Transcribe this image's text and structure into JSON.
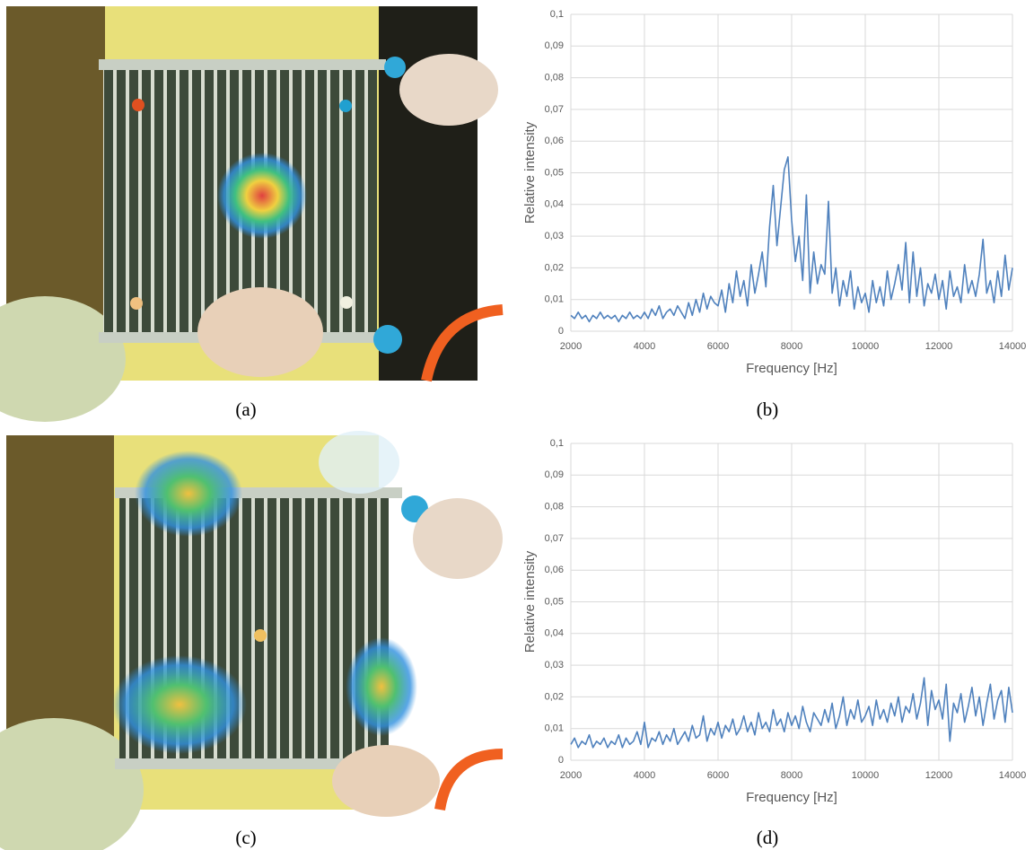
{
  "captions": [
    "(a)",
    "(b)",
    "(c)",
    "(d)"
  ],
  "chart_data": [
    {
      "type": "line",
      "xlabel": "Frequency [Hz]",
      "ylabel": "Relative intensity",
      "grid": true,
      "xlim": [
        2000,
        14000
      ],
      "ylim": [
        0,
        0.1
      ],
      "xticks": [
        2000,
        4000,
        6000,
        8000,
        10000,
        12000,
        14000
      ],
      "yticks": [
        0,
        {
          "value": 0.01,
          "label": "0,01"
        },
        {
          "value": 0.02,
          "label": "0,02"
        },
        {
          "value": 0.03,
          "label": "0,03"
        },
        {
          "value": 0.04,
          "label": "0,04"
        },
        {
          "value": 0.05,
          "label": "0,05"
        },
        {
          "value": 0.06,
          "label": "0,06"
        },
        {
          "value": 0.07,
          "label": "0,07"
        },
        {
          "value": 0.08,
          "label": "0,08"
        },
        {
          "value": 0.09,
          "label": "0,09"
        },
        {
          "value": 0.1,
          "label": "0,1"
        }
      ],
      "color": "#4f81bd",
      "x": [
        2000,
        2100,
        2200,
        2300,
        2400,
        2500,
        2600,
        2700,
        2800,
        2900,
        3000,
        3100,
        3200,
        3300,
        3400,
        3500,
        3600,
        3700,
        3800,
        3900,
        4000,
        4100,
        4200,
        4300,
        4400,
        4500,
        4600,
        4700,
        4800,
        4900,
        5000,
        5100,
        5200,
        5300,
        5400,
        5500,
        5600,
        5700,
        5800,
        5900,
        6000,
        6100,
        6200,
        6300,
        6400,
        6500,
        6600,
        6700,
        6800,
        6900,
        7000,
        7100,
        7200,
        7300,
        7400,
        7500,
        7600,
        7700,
        7800,
        7900,
        8000,
        8100,
        8200,
        8300,
        8400,
        8500,
        8600,
        8700,
        8800,
        8900,
        9000,
        9100,
        9200,
        9300,
        9400,
        9500,
        9600,
        9700,
        9800,
        9900,
        10000,
        10100,
        10200,
        10300,
        10400,
        10500,
        10600,
        10700,
        10800,
        10900,
        11000,
        11100,
        11200,
        11300,
        11400,
        11500,
        11600,
        11700,
        11800,
        11900,
        12000,
        12100,
        12200,
        12300,
        12400,
        12500,
        12600,
        12700,
        12800,
        12900,
        13000,
        13100,
        13200,
        13300,
        13400,
        13500,
        13600,
        13700,
        13800,
        13900,
        14000
      ],
      "values": [
        0.005,
        0.004,
        0.006,
        0.004,
        0.005,
        0.003,
        0.005,
        0.004,
        0.006,
        0.004,
        0.005,
        0.004,
        0.005,
        0.003,
        0.005,
        0.004,
        0.006,
        0.004,
        0.005,
        0.004,
        0.006,
        0.004,
        0.007,
        0.005,
        0.008,
        0.004,
        0.006,
        0.007,
        0.005,
        0.008,
        0.006,
        0.004,
        0.009,
        0.005,
        0.01,
        0.006,
        0.012,
        0.007,
        0.011,
        0.009,
        0.008,
        0.013,
        0.006,
        0.015,
        0.009,
        0.019,
        0.011,
        0.016,
        0.008,
        0.021,
        0.012,
        0.018,
        0.025,
        0.014,
        0.033,
        0.046,
        0.027,
        0.039,
        0.051,
        0.055,
        0.035,
        0.022,
        0.03,
        0.016,
        0.043,
        0.012,
        0.025,
        0.015,
        0.021,
        0.018,
        0.041,
        0.012,
        0.02,
        0.008,
        0.016,
        0.011,
        0.019,
        0.007,
        0.014,
        0.009,
        0.012,
        0.006,
        0.016,
        0.009,
        0.014,
        0.008,
        0.019,
        0.01,
        0.015,
        0.021,
        0.013,
        0.028,
        0.009,
        0.025,
        0.011,
        0.02,
        0.008,
        0.015,
        0.012,
        0.018,
        0.01,
        0.016,
        0.007,
        0.019,
        0.011,
        0.014,
        0.009,
        0.021,
        0.012,
        0.016,
        0.011,
        0.018,
        0.029,
        0.012,
        0.016,
        0.009,
        0.019,
        0.011,
        0.024,
        0.013,
        0.02
      ]
    },
    {
      "type": "line",
      "xlabel": "Frequency [Hz]",
      "ylabel": "Relative intensity",
      "grid": true,
      "xlim": [
        2000,
        14000
      ],
      "ylim": [
        0,
        0.1
      ],
      "xticks": [
        2000,
        4000,
        6000,
        8000,
        10000,
        12000,
        14000
      ],
      "yticks": [
        0,
        {
          "value": 0.01,
          "label": "0,01"
        },
        {
          "value": 0.02,
          "label": "0,02"
        },
        {
          "value": 0.03,
          "label": "0,03"
        },
        {
          "value": 0.04,
          "label": "0,04"
        },
        {
          "value": 0.05,
          "label": "0,05"
        },
        {
          "value": 0.06,
          "label": "0,06"
        },
        {
          "value": 0.07,
          "label": "0,07"
        },
        {
          "value": 0.08,
          "label": "0,08"
        },
        {
          "value": 0.09,
          "label": "0,09"
        },
        {
          "value": 0.1,
          "label": "0,1"
        }
      ],
      "color": "#4f81bd",
      "x": [
        2000,
        2100,
        2200,
        2300,
        2400,
        2500,
        2600,
        2700,
        2800,
        2900,
        3000,
        3100,
        3200,
        3300,
        3400,
        3500,
        3600,
        3700,
        3800,
        3900,
        4000,
        4100,
        4200,
        4300,
        4400,
        4500,
        4600,
        4700,
        4800,
        4900,
        5000,
        5100,
        5200,
        5300,
        5400,
        5500,
        5600,
        5700,
        5800,
        5900,
        6000,
        6100,
        6200,
        6300,
        6400,
        6500,
        6600,
        6700,
        6800,
        6900,
        7000,
        7100,
        7200,
        7300,
        7400,
        7500,
        7600,
        7700,
        7800,
        7900,
        8000,
        8100,
        8200,
        8300,
        8400,
        8500,
        8600,
        8700,
        8800,
        8900,
        9000,
        9100,
        9200,
        9300,
        9400,
        9500,
        9600,
        9700,
        9800,
        9900,
        10000,
        10100,
        10200,
        10300,
        10400,
        10500,
        10600,
        10700,
        10800,
        10900,
        11000,
        11100,
        11200,
        11300,
        11400,
        11500,
        11600,
        11700,
        11800,
        11900,
        12000,
        12100,
        12200,
        12300,
        12400,
        12500,
        12600,
        12700,
        12800,
        12900,
        13000,
        13100,
        13200,
        13300,
        13400,
        13500,
        13600,
        13700,
        13800,
        13900,
        14000
      ],
      "values": [
        0.005,
        0.007,
        0.004,
        0.006,
        0.005,
        0.008,
        0.004,
        0.006,
        0.005,
        0.007,
        0.004,
        0.006,
        0.005,
        0.008,
        0.004,
        0.007,
        0.005,
        0.006,
        0.009,
        0.005,
        0.012,
        0.004,
        0.007,
        0.006,
        0.009,
        0.005,
        0.008,
        0.006,
        0.01,
        0.005,
        0.007,
        0.009,
        0.006,
        0.011,
        0.007,
        0.008,
        0.014,
        0.006,
        0.01,
        0.008,
        0.012,
        0.007,
        0.011,
        0.009,
        0.013,
        0.008,
        0.01,
        0.014,
        0.009,
        0.012,
        0.008,
        0.015,
        0.01,
        0.012,
        0.009,
        0.016,
        0.011,
        0.013,
        0.009,
        0.015,
        0.011,
        0.014,
        0.01,
        0.017,
        0.012,
        0.009,
        0.015,
        0.013,
        0.011,
        0.016,
        0.012,
        0.018,
        0.01,
        0.014,
        0.02,
        0.011,
        0.016,
        0.013,
        0.019,
        0.012,
        0.014,
        0.017,
        0.011,
        0.019,
        0.013,
        0.016,
        0.012,
        0.018,
        0.014,
        0.02,
        0.012,
        0.017,
        0.015,
        0.021,
        0.013,
        0.018,
        0.026,
        0.011,
        0.022,
        0.016,
        0.019,
        0.013,
        0.024,
        0.006,
        0.018,
        0.015,
        0.021,
        0.012,
        0.017,
        0.023,
        0.014,
        0.02,
        0.011,
        0.018,
        0.024,
        0.013,
        0.019,
        0.022,
        0.012,
        0.023,
        0.015
      ]
    }
  ]
}
